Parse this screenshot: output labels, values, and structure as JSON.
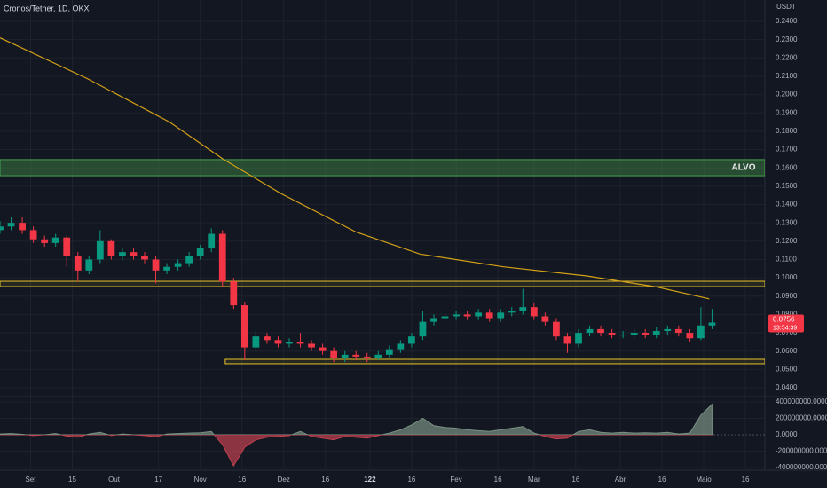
{
  "chart_data": {
    "type": "candlestick",
    "title": "Cronos/Tether, 1D, OKX",
    "y_unit": "USDT",
    "x": [
      -11,
      -7,
      -3,
      1,
      5,
      9,
      13,
      17,
      21,
      25,
      29,
      33,
      37,
      41,
      45,
      49,
      53,
      57,
      61,
      65,
      69,
      73,
      77,
      81,
      85,
      89,
      93,
      97,
      101,
      105,
      109,
      113,
      117,
      121,
      125,
      129,
      133,
      137,
      141,
      145,
      149,
      153,
      157,
      161,
      165,
      169,
      173,
      177,
      181,
      185,
      189,
      193,
      197,
      201,
      205,
      209,
      213,
      217,
      221,
      225,
      229,
      233,
      237,
      241,
      245
    ],
    "open": [
      0.126,
      0.128,
      0.13,
      0.126,
      0.121,
      0.119,
      0.122,
      0.112,
      0.104,
      0.11,
      0.12,
      0.112,
      0.114,
      0.112,
      0.11,
      0.104,
      0.106,
      0.108,
      0.112,
      0.116,
      0.124,
      0.098,
      0.085,
      0.062,
      0.068,
      0.066,
      0.064,
      0.065,
      0.064,
      0.062,
      0.06,
      0.056,
      0.058,
      0.057,
      0.056,
      0.058,
      0.061,
      0.064,
      0.068,
      0.076,
      0.078,
      0.079,
      0.08,
      0.079,
      0.081,
      0.078,
      0.081,
      0.082,
      0.084,
      0.079,
      0.076,
      0.068,
      0.064,
      0.07,
      0.072,
      0.07,
      0.069,
      0.069,
      0.07,
      0.069,
      0.071,
      0.072,
      0.07,
      0.067,
      0.074
    ],
    "high": [
      0.131,
      0.133,
      0.133,
      0.128,
      0.123,
      0.124,
      0.123,
      0.114,
      0.112,
      0.126,
      0.121,
      0.116,
      0.116,
      0.114,
      0.112,
      0.108,
      0.11,
      0.114,
      0.118,
      0.127,
      0.126,
      0.1,
      0.087,
      0.071,
      0.07,
      0.068,
      0.067,
      0.07,
      0.066,
      0.064,
      0.062,
      0.06,
      0.06,
      0.059,
      0.06,
      0.063,
      0.066,
      0.07,
      0.082,
      0.08,
      0.081,
      0.082,
      0.082,
      0.083,
      0.083,
      0.083,
      0.084,
      0.094,
      0.086,
      0.081,
      0.078,
      0.07,
      0.072,
      0.074,
      0.074,
      0.072,
      0.071,
      0.072,
      0.072,
      0.073,
      0.074,
      0.074,
      0.072,
      0.084,
      0.083
    ],
    "low": [
      0.124,
      0.126,
      0.124,
      0.119,
      0.117,
      0.117,
      0.106,
      0.098,
      0.102,
      0.108,
      0.11,
      0.11,
      0.11,
      0.108,
      0.097,
      0.102,
      0.104,
      0.106,
      0.11,
      0.114,
      0.095,
      0.083,
      0.055,
      0.06,
      0.064,
      0.062,
      0.062,
      0.062,
      0.06,
      0.058,
      0.054,
      0.054,
      0.055,
      0.054,
      0.055,
      0.056,
      0.059,
      0.062,
      0.066,
      0.074,
      0.076,
      0.077,
      0.077,
      0.077,
      0.076,
      0.076,
      0.079,
      0.08,
      0.077,
      0.074,
      0.066,
      0.059,
      0.062,
      0.068,
      0.068,
      0.067,
      0.067,
      0.067,
      0.067,
      0.067,
      0.069,
      0.068,
      0.065,
      0.066,
      0.072
    ],
    "close": [
      0.128,
      0.13,
      0.126,
      0.121,
      0.119,
      0.122,
      0.112,
      0.104,
      0.11,
      0.12,
      0.112,
      0.114,
      0.112,
      0.11,
      0.104,
      0.106,
      0.108,
      0.112,
      0.116,
      0.124,
      0.098,
      0.085,
      0.062,
      0.068,
      0.066,
      0.064,
      0.065,
      0.064,
      0.062,
      0.06,
      0.056,
      0.058,
      0.057,
      0.056,
      0.058,
      0.061,
      0.064,
      0.068,
      0.076,
      0.078,
      0.079,
      0.08,
      0.079,
      0.081,
      0.078,
      0.081,
      0.082,
      0.084,
      0.079,
      0.076,
      0.068,
      0.064,
      0.07,
      0.072,
      0.07,
      0.069,
      0.069,
      0.07,
      0.069,
      0.071,
      0.072,
      0.07,
      0.067,
      0.074,
      0.0756
    ],
    "up_color": "#089981",
    "down_color": "#f23645",
    "ma": {
      "color": "#d4a017",
      "x": [
        -11,
        20,
        50,
        69,
        90,
        117,
        140,
        170,
        200,
        225,
        244
      ],
      "values": [
        0.231,
        0.209,
        0.185,
        0.165,
        0.146,
        0.125,
        0.113,
        0.106,
        0.101,
        0.095,
        0.0885
      ]
    },
    "target_zone": {
      "label": "ALVO",
      "low": 0.1557,
      "high": 0.1645,
      "color": "#4caf50"
    },
    "levels": [
      {
        "low": 0.0952,
        "high": 0.0981,
        "from": -11,
        "color": "#e6c229"
      },
      {
        "low": 0.0531,
        "high": 0.0555,
        "from": 70,
        "color": "#e6c229"
      }
    ],
    "last_price": 0.0756,
    "countdown": "13:54:39",
    "xlim": [
      -11,
      264
    ],
    "xticks": [
      {
        "value": 0,
        "label": "Set"
      },
      15,
      {
        "value": 30,
        "label": "Out"
      },
      {
        "value": 46,
        "label": "17"
      },
      {
        "value": 61,
        "label": "Nov"
      },
      {
        "value": 76,
        "label": "16"
      },
      {
        "value": 91,
        "label": "Dez"
      },
      {
        "value": 106,
        "label": "16"
      },
      122,
      {
        "value": 137,
        "label": "16"
      },
      {
        "value": 153,
        "label": "Fev"
      },
      {
        "value": 168,
        "label": "16"
      },
      {
        "value": 181,
        "label": "Mar"
      },
      {
        "value": 196,
        "label": "16"
      },
      {
        "value": 212,
        "label": "Abr"
      },
      {
        "value": 227,
        "label": "16"
      },
      {
        "value": 242,
        "label": "Maio"
      },
      {
        "value": 257,
        "label": "16"
      }
    ],
    "xtick_bold": [
      122
    ],
    "ylim": [
      0.04,
      0.24
    ],
    "yticks": [
      {
        "value": 0.24,
        "label": "0.2400"
      },
      {
        "value": 0.23,
        "label": "0.2300"
      },
      {
        "value": 0.22,
        "label": "0.2200"
      },
      {
        "value": 0.21,
        "label": "0.2100"
      },
      {
        "value": 0.2,
        "label": "0.2000"
      },
      {
        "value": 0.19,
        "label": "0.1900"
      },
      {
        "value": 0.18,
        "label": "0.1800"
      },
      {
        "value": 0.17,
        "label": "0.1700"
      },
      {
        "value": 0.16,
        "label": "0.1600"
      },
      {
        "value": 0.15,
        "label": "0.1500"
      },
      {
        "value": 0.14,
        "label": "0.1400"
      },
      {
        "value": 0.13,
        "label": "0.1300"
      },
      {
        "value": 0.12,
        "label": "0.1200"
      },
      {
        "value": 0.11,
        "label": "0.1100"
      },
      {
        "value": 0.1,
        "label": "0.1000"
      },
      {
        "value": 0.09,
        "label": "0.0900"
      },
      {
        "value": 0.08,
        "label": "0.0800"
      },
      {
        "value": 0.07,
        "label": "0.0700"
      },
      {
        "value": 0.06,
        "label": "0.0600"
      },
      {
        "value": 0.05,
        "label": "0.0500"
      },
      {
        "value": 0.04,
        "label": "0.0400"
      }
    ],
    "oscillator": {
      "axis": "y2",
      "pos_color": "#7a9183",
      "neg_color": "#c0414f",
      "values": [
        10000000,
        15000000,
        5000000,
        -10000000,
        0,
        15000000,
        -15000000,
        -30000000,
        10000000,
        30000000,
        -10000000,
        10000000,
        0,
        -10000000,
        -25000000,
        10000000,
        15000000,
        20000000,
        25000000,
        40000000,
        -120000000,
        -380000000,
        -150000000,
        -60000000,
        -30000000,
        -20000000,
        -10000000,
        40000000,
        -20000000,
        -40000000,
        -60000000,
        -20000000,
        -30000000,
        -40000000,
        -10000000,
        20000000,
        60000000,
        120000000,
        200000000,
        110000000,
        90000000,
        80000000,
        60000000,
        50000000,
        40000000,
        60000000,
        80000000,
        100000000,
        20000000,
        -20000000,
        -50000000,
        -40000000,
        40000000,
        60000000,
        30000000,
        20000000,
        30000000,
        20000000,
        25000000,
        20000000,
        30000000,
        10000000,
        20000000,
        240000000,
        370000000
      ]
    },
    "y2lim": [
      -400000000,
      400000000
    ],
    "y2ticks": [
      {
        "value": 400000000,
        "label": "400000000.0000"
      },
      {
        "value": 200000000,
        "label": "200000000.0000"
      },
      {
        "value": 0,
        "label": "0.0000"
      },
      {
        "value": -200000000,
        "label": "-200000000.0000"
      },
      {
        "value": -400000000,
        "label": "-400000000.0000"
      }
    ]
  }
}
